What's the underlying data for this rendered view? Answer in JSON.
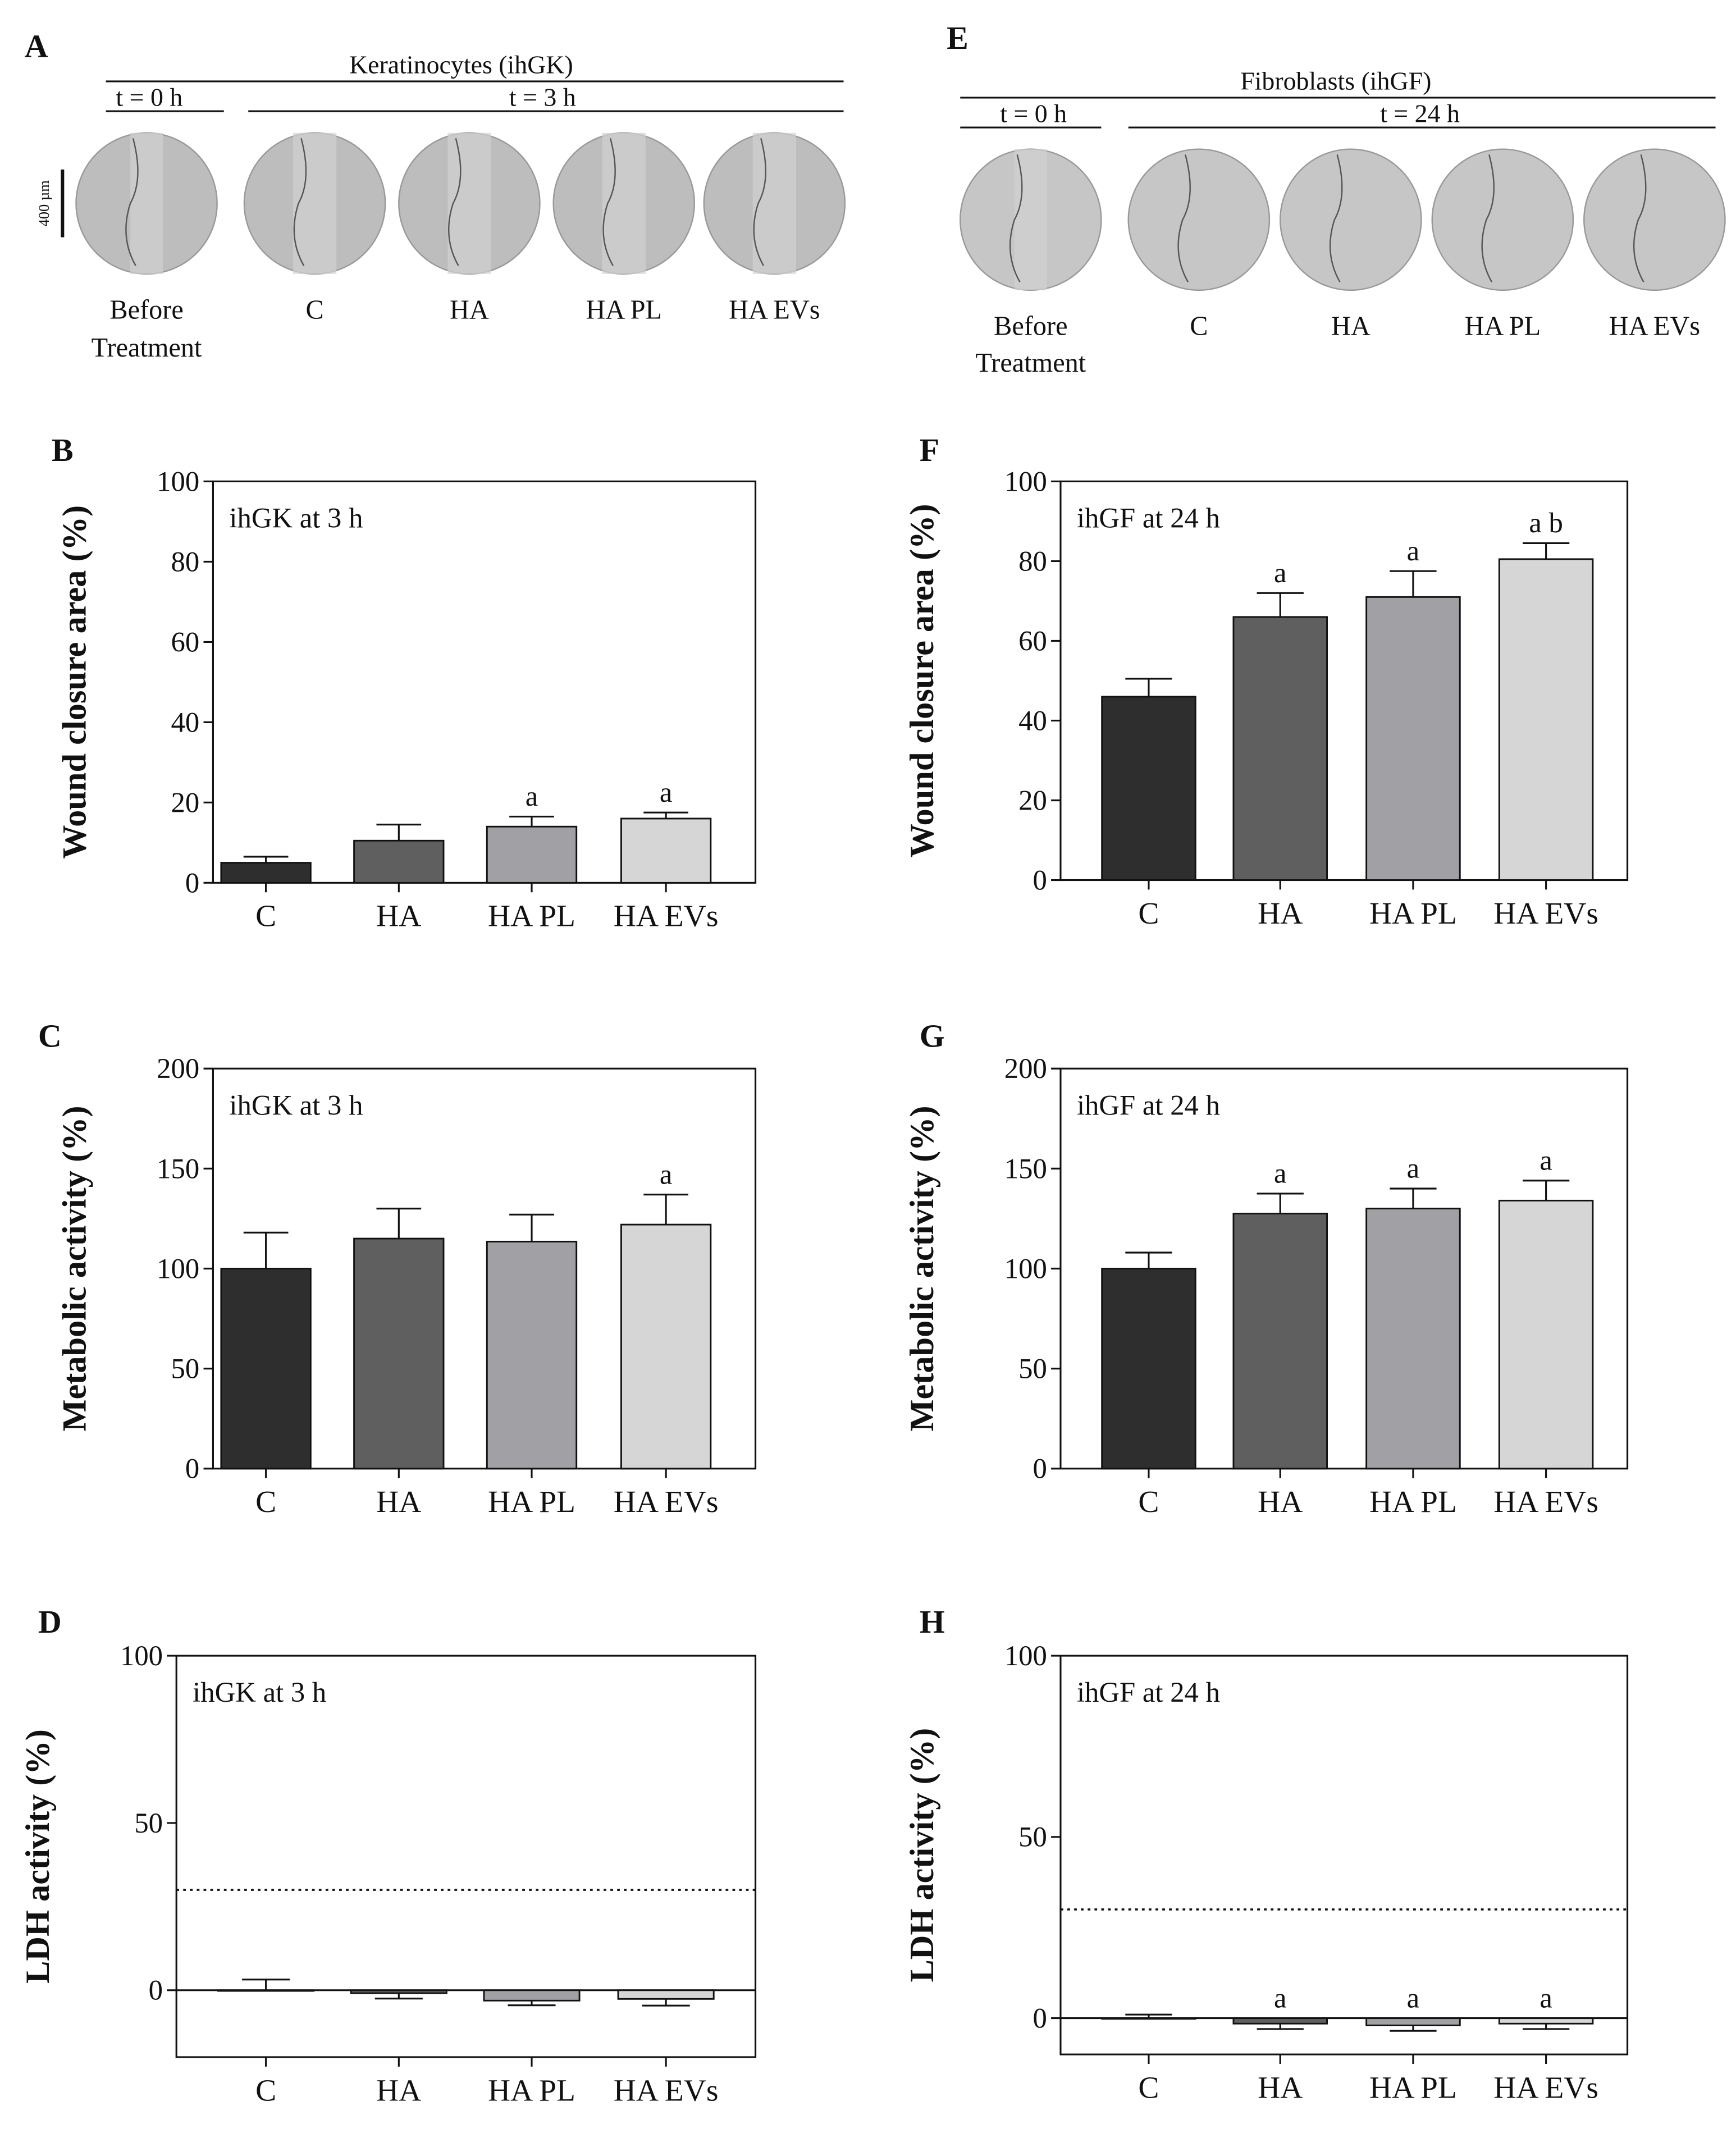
{
  "colors": {
    "C": "#2e2e2e",
    "HA": "#5f5f5f",
    "HA PL": "#a0a0a5",
    "HA EVs": "#d6d6d6"
  },
  "micro_panels": [
    {
      "letter": "A",
      "title": "Keratinocytes  (ihGK)",
      "t0": "t = 0 h",
      "t1": "t = 3 h",
      "scale_bar": "400 µm",
      "labels": [
        "Before",
        "C",
        "HA",
        "HA PL",
        "HA EVs"
      ],
      "label2": "Treatment",
      "tone": "#bdbdbd"
    },
    {
      "letter": "E",
      "title": "Fibroblasts  (ihGF)",
      "t0": "t = 0 h",
      "t1": "t = 24 h",
      "labels": [
        "Before",
        "C",
        "HA",
        "HA PL",
        "HA EVs"
      ],
      "label2": "Treatment",
      "tone": "#c6c6c6"
    }
  ],
  "chart_data": [
    {
      "id": "B",
      "type": "bar",
      "letter": "B",
      "ylabel": "Wound closure area (%)",
      "annotation": "ihGK at 3 h",
      "categories": [
        "C",
        "HA",
        "HA PL",
        "HA EVs"
      ],
      "values": [
        5,
        10.5,
        14,
        16
      ],
      "errors": [
        1.5,
        4,
        2.5,
        1.5
      ],
      "sig": [
        "",
        "",
        "a",
        "a"
      ],
      "ylim": [
        0,
        100
      ],
      "ticks": [
        0,
        20,
        40,
        60,
        80,
        100
      ],
      "ticks_label": [
        "0",
        "20",
        "40",
        "60",
        "80",
        "100"
      ]
    },
    {
      "id": "F",
      "type": "bar",
      "letter": "F",
      "ylabel": "Wound closure area (%)",
      "annotation": "ihGF at 24 h",
      "categories": [
        "C",
        "HA",
        "HA PL",
        "HA EVs"
      ],
      "values": [
        46,
        66,
        71,
        80.5
      ],
      "errors": [
        4.5,
        6,
        6.5,
        4
      ],
      "sig": [
        "",
        "a",
        "a",
        "a b"
      ],
      "ylim": [
        0,
        100
      ],
      "ticks": [
        0,
        20,
        40,
        60,
        80,
        100
      ],
      "ticks_label": [
        "0",
        "20",
        "40",
        "60",
        "80",
        "100"
      ]
    },
    {
      "id": "C",
      "type": "bar",
      "letter": "C",
      "ylabel": "Metabolic activity (%)",
      "annotation": "ihGK at 3 h",
      "categories": [
        "C",
        "HA",
        "HA PL",
        "HA EVs"
      ],
      "values": [
        100,
        115,
        113.5,
        122
      ],
      "errors": [
        18,
        15,
        13.5,
        15
      ],
      "sig": [
        "",
        "",
        "",
        "a"
      ],
      "ylim": [
        0,
        200
      ],
      "ticks": [
        0,
        50,
        100,
        150,
        200
      ],
      "ticks_label": [
        "0",
        "50",
        "100",
        "150",
        "200"
      ]
    },
    {
      "id": "G",
      "type": "bar",
      "letter": "G",
      "ylabel": "Metabolic activity (%)",
      "annotation": "ihGF at 24 h",
      "categories": [
        "C",
        "HA",
        "HA PL",
        "HA EVs"
      ],
      "values": [
        100,
        127.5,
        130,
        134
      ],
      "errors": [
        8,
        10,
        10,
        10
      ],
      "sig": [
        "",
        "a",
        "a",
        "a"
      ],
      "ylim": [
        0,
        200
      ],
      "ticks": [
        0,
        50,
        100,
        150,
        200
      ],
      "ticks_label": [
        "0",
        "50",
        "100",
        "150",
        "200"
      ]
    },
    {
      "id": "D",
      "type": "bar",
      "letter": "D",
      "ylabel": "LDH activity (%)",
      "annotation": "ihGK at 3 h",
      "categories": [
        "C",
        "HA",
        "HA PL",
        "HA EVs"
      ],
      "values": [
        0,
        -0.9,
        -3.1,
        -2.6
      ],
      "errors": [
        3.2,
        1.6,
        1.4,
        2
      ],
      "sig": [
        "",
        "",
        "",
        ""
      ],
      "ylim": [
        -20,
        100
      ],
      "ticks": [
        0,
        50,
        100
      ],
      "ticks_label": [
        "0",
        "50",
        "100"
      ],
      "reference_line": 30
    },
    {
      "id": "H",
      "type": "bar",
      "letter": "H",
      "ylabel": "LDH activity (%)",
      "annotation": "ihGF at 24 h",
      "categories": [
        "C",
        "HA",
        "HA PL",
        "HA EVs"
      ],
      "values": [
        0,
        -1.5,
        -2,
        -1.5
      ],
      "errors": [
        1,
        1.5,
        1.5,
        1.5
      ],
      "sig": [
        "",
        "a",
        "a",
        "a"
      ],
      "ylim": [
        -10,
        100
      ],
      "ticks": [
        0,
        50,
        100
      ],
      "ticks_label": [
        "0",
        "50",
        "100"
      ],
      "reference_line": 30
    }
  ]
}
